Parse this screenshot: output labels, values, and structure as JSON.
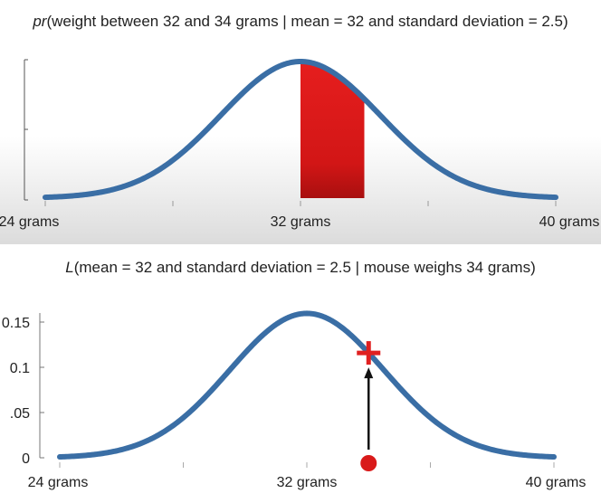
{
  "chart_data": [
    {
      "type": "line",
      "title_prefix": "pr",
      "title_rest": "(weight between 32 and 34 grams | mean = 32 and standard deviation = 2.5)",
      "distribution": {
        "mean": 32,
        "sd": 2.5
      },
      "xlim": [
        24,
        40
      ],
      "x_tick_labels": [
        {
          "x": 24,
          "label": "24 grams"
        },
        {
          "x": 32,
          "label": "32 grams"
        },
        {
          "x": 40,
          "label": "40 grams"
        }
      ],
      "shaded_region": {
        "from": 32,
        "to": 34,
        "color": "#e01b1b"
      },
      "curve_color": "#3a6ea5",
      "grid": false
    },
    {
      "type": "line",
      "title_prefix": "L",
      "title_rest": "(mean = 32 and standard deviation = 2.5 | mouse weighs 34 grams)",
      "distribution": {
        "mean": 32,
        "sd": 2.5
      },
      "xlim": [
        24,
        40
      ],
      "ylim": [
        0,
        0.16
      ],
      "x_tick_labels": [
        {
          "x": 24,
          "label": "24 grams"
        },
        {
          "x": 32,
          "label": "32 grams"
        },
        {
          "x": 40,
          "label": "40 grams"
        }
      ],
      "y_tick_labels": [
        {
          "y": 0,
          "label": "0"
        },
        {
          "y": 0.05,
          "label": ".05"
        },
        {
          "y": 0.1,
          "label": "0.1"
        },
        {
          "y": 0.15,
          "label": "0.15"
        }
      ],
      "observation": {
        "x": 34,
        "y": 0.1159,
        "point_color": "#d91a1a",
        "marker_color": "#e02020"
      },
      "curve_color": "#3a6ea5",
      "grid": false
    }
  ]
}
